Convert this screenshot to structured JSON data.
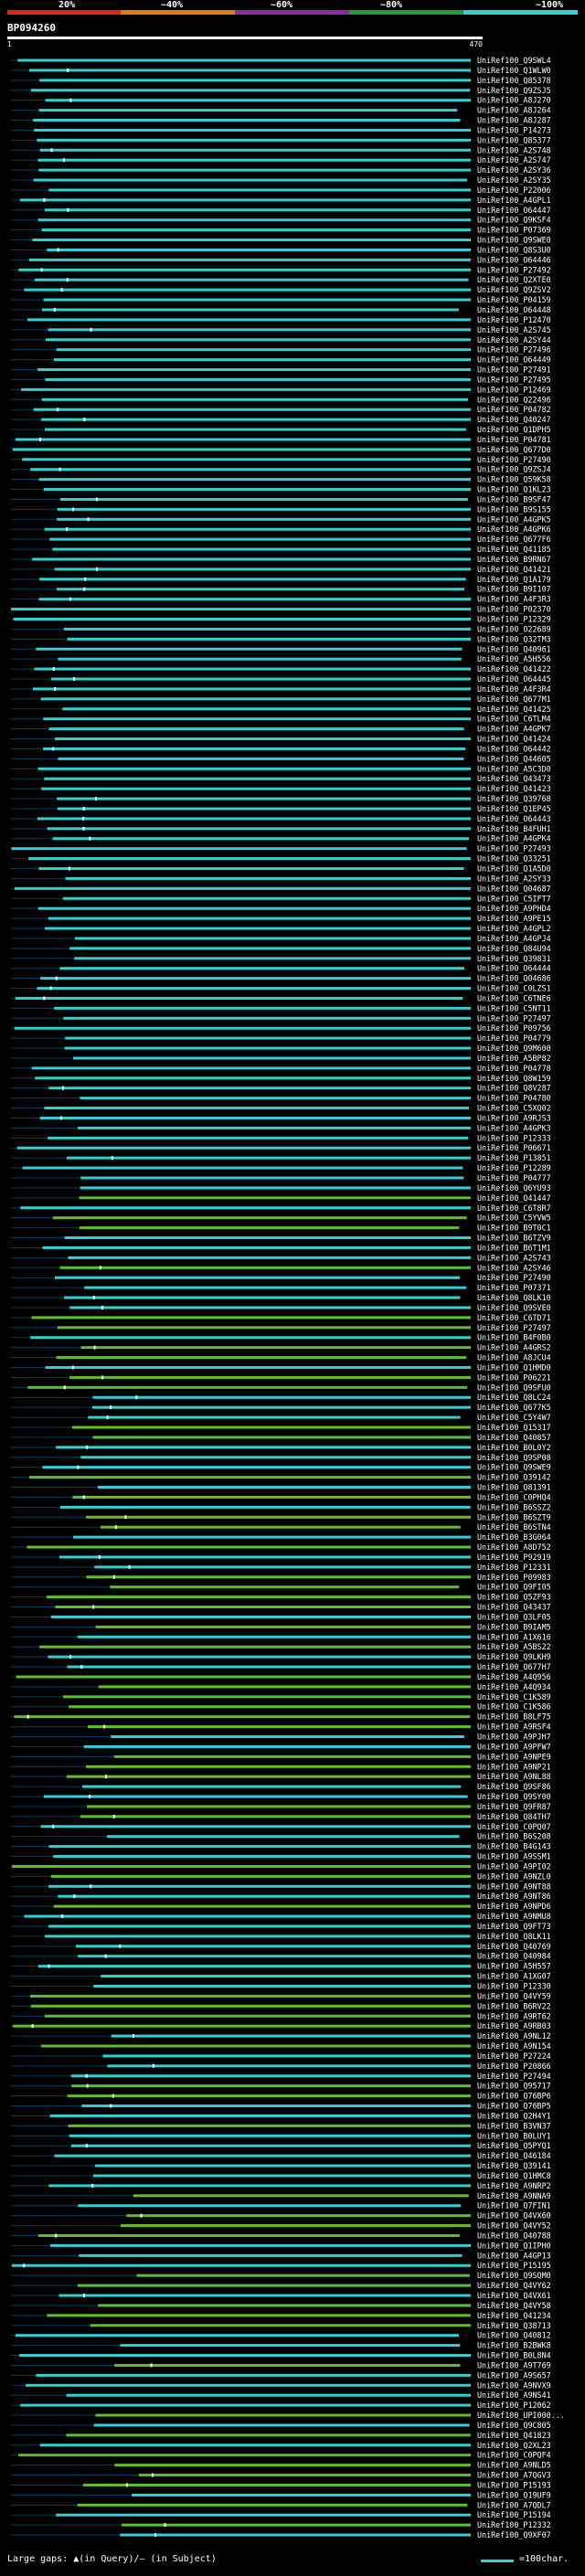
{
  "scale_bar": {
    "labels": [
      "20%",
      "~40%",
      "~60%",
      "~80%",
      "~100%"
    ],
    "colors": [
      "#e2231a",
      "#e07b17",
      "#8e2aa8",
      "#1f9a3a",
      "#2fd0d6"
    ]
  },
  "query_id": "BP094260",
  "ruler": {
    "start": "1",
    "end": "470"
  },
  "colors": {
    "strong": "#2fd0d6",
    "medium": "#5fbf2a",
    "gap": "#0a3a5a"
  },
  "hits": [
    "UniRef100_Q9SWL4",
    "UniRef100_Q1WLW0",
    "UniRef100_Q85378",
    "UniRef100_Q9ZSJ5",
    "UniRef100_A8J270",
    "UniRef100_A8J264",
    "UniRef100_A8J287",
    "UniRef100_P14273",
    "UniRef100_Q85377",
    "UniRef100_A2S748",
    "UniRef100_A2S747",
    "UniRef100_A2SY36",
    "UniRef100_A2SY35",
    "UniRef100_P22006",
    "UniRef100_A4GPL1",
    "UniRef100_O64447",
    "UniRef100_Q9KSF4",
    "UniRef100_P07369",
    "UniRef100_Q9SWE0",
    "UniRef100_Q8S3U0",
    "UniRef100_O64446",
    "UniRef100_P27492",
    "UniRef100_Q2XTE0",
    "UniRef100_Q9ZSV2",
    "UniRef100_P04159",
    "UniRef100_O64448",
    "UniRef100_P12470",
    "UniRef100_A2S745",
    "UniRef100_A2SY44",
    "UniRef100_P27496",
    "UniRef100_O64449",
    "UniRef100_P27491",
    "UniRef100_P27495",
    "UniRef100_P12469",
    "UniRef100_Q22496",
    "UniRef100_P04782",
    "UniRef100_Q40247",
    "UniRef100_Q1DPH5",
    "UniRef100_P04781",
    "UniRef100_Q677D0",
    "UniRef100_P27490",
    "UniRef100_Q9ZSJ4",
    "UniRef100_Q59K58",
    "UniRef100_Q1KL23",
    "UniRef100_B9SF47",
    "UniRef100_B9S155",
    "UniRef100_A4GPK5",
    "UniRef100_A4GPK6",
    "UniRef100_Q677F6",
    "UniRef100_Q41185",
    "UniRef100_B9RN67",
    "UniRef100_Q41421",
    "UniRef100_Q1A179",
    "UniRef100_B9I107",
    "UniRef100_A4F3R3",
    "UniRef100_P02370",
    "UniRef100_P12329",
    "UniRef100_O22689",
    "UniRef100_Q32TM3",
    "UniRef100_Q40961",
    "UniRef100_A5H556",
    "UniRef100_Q41422",
    "UniRef100_O64445",
    "UniRef100_A4F3R4",
    "UniRef100_Q677M1",
    "UniRef100_Q41425",
    "UniRef100_C6TLM4",
    "UniRef100_A4GPK7",
    "UniRef100_Q41424",
    "UniRef100_O64442",
    "UniRef100_Q44605",
    "UniRef100_A5C3D0",
    "UniRef100_Q43473",
    "UniRef100_Q41423",
    "UniRef100_Q39768",
    "UniRef100_Q1EP45",
    "UniRef100_O64443",
    "UniRef100_B4FUH1",
    "UniRef100_A4GPK4",
    "UniRef100_P27493",
    "UniRef100_Q33251",
    "UniRef100_Q1A5D0",
    "UniRef100_A2SY33",
    "UniRef100_Q04687",
    "UniRef100_C5IFT7",
    "UniRef100_A9PHD4",
    "UniRef100_A9PE15",
    "UniRef100_A4GPL2",
    "UniRef100_A4GPJ4",
    "UniRef100_Q84U94",
    "UniRef100_Q39831",
    "UniRef100_O64444",
    "UniRef100_Q04686",
    "UniRef100_C0LZS1",
    "UniRef100_C6TNE6",
    "UniRef100_C5NT11",
    "UniRef100_P27497",
    "UniRef100_P09756",
    "UniRef100_P04779",
    "UniRef100_Q9M600",
    "UniRef100_A5BP82",
    "UniRef100_P04778",
    "UniRef100_Q8W159",
    "UniRef100_Q8V287",
    "UniRef100_P04780",
    "UniRef100_C5XQ02",
    "UniRef100_A9RJS3",
    "UniRef100_A4GPK3",
    "UniRef100_P12333",
    "UniRef100_P06671",
    "UniRef100_P13851",
    "UniRef100_P12289",
    "UniRef100_P04777",
    "UniRef100_Q6YU93",
    "UniRef100_Q41447",
    "UniRef100_C6T8R7",
    "UniRef100_C5YVW5",
    "UniRef100_B9T0C1",
    "UniRef100_B6TZV9",
    "UniRef100_B6T1M1",
    "UniRef100_A2S743",
    "UniRef100_A2SY46",
    "UniRef100_P27490",
    "UniRef100_P07371",
    "UniRef100_Q8LK10",
    "UniRef100_Q9SVE0",
    "UniRef100_C6TD71",
    "UniRef100_P27497",
    "UniRef100_B4F0B0",
    "UniRef100_A4GRS2",
    "UniRef100_A8JCU4",
    "UniRef100_Q1HMD0",
    "UniRef100_P06221",
    "UniRef100_Q9SFU0",
    "UniRef100_Q8LC24",
    "UniRef100_Q677K5",
    "UniRef100_C5Y4W7",
    "UniRef100_Q15317",
    "UniRef100_Q40857",
    "UniRef100_B0L0Y2",
    "UniRef100_Q9SP08",
    "UniRef100_Q9SWE9",
    "UniRef100_Q39142",
    "UniRef100_Q81391",
    "UniRef100_C0PHQ4",
    "UniRef100_B6SSZ2",
    "UniRef100_B6SZT9",
    "UniRef100_B6STN4",
    "UniRef100_B3G064",
    "UniRef100_A8D752",
    "UniRef100_P92919",
    "UniRef100_P12331",
    "UniRef100_P09983",
    "UniRef100_Q9FI05",
    "UniRef100_Q5ZF93",
    "UniRef100_Q43437",
    "UniRef100_Q3LF05",
    "UniRef100_B9IAM5",
    "UniRef100_A1X616",
    "UniRef100_A5BS22",
    "UniRef100_Q9LKH9",
    "UniRef100_Q677H7",
    "UniRef100_A4Q956",
    "UniRef100_A4Q934",
    "UniRef100_C1K589",
    "UniRef100_C1K586",
    "UniRef100_B8LF75",
    "UniRef100_A9RSF4",
    "UniRef100_A9PJH7",
    "UniRef100_A9PFW7",
    "UniRef100_A9NPE9",
    "UniRef100_A9NP21",
    "UniRef100_A9NL88",
    "UniRef100_Q9SF86",
    "UniRef100_Q9SY00",
    "UniRef100_Q9FR87",
    "UniRef100_Q84TH7",
    "UniRef100_C0PQ07",
    "UniRef100_B6S208",
    "UniRef100_B4G143",
    "UniRef100_A9SSM1",
    "UniRef100_A9PI02",
    "UniRef100_A9NZL0",
    "UniRef100_A9NT88",
    "UniRef100_A9NT86",
    "UniRef100_A9NPD6",
    "UniRef100_A9NMU8",
    "UniRef100_Q9FT73",
    "UniRef100_Q8LK11",
    "UniRef100_Q40769",
    "UniRef100_Q40984",
    "UniRef100_A5H557",
    "UniRef100_A1XG07",
    "UniRef100_P12330",
    "UniRef100_Q4VY59",
    "UniRef100_B6RV22",
    "UniRef100_A9RT62",
    "UniRef100_A9RB03",
    "UniRef100_A9NL12",
    "UniRef100_A9N154",
    "UniRef100_P27224",
    "UniRef100_P20866",
    "UniRef100_P27494",
    "UniRef100_Q95717",
    "UniRef100_Q76BP6",
    "UniRef100_Q76BP5",
    "UniRef100_Q2H4Y1",
    "UniRef100_B3VN37",
    "UniRef100_B0LUY1",
    "UniRef100_Q5PYQ1",
    "UniRef100_Q46184",
    "UniRef100_Q39141",
    "UniRef100_Q1HMC8",
    "UniRef100_A9NRP2",
    "UniRef100_A9NNA9",
    "UniRef100_Q7FIN1",
    "UniRef100_Q4VX60",
    "UniRef100_Q4VY52",
    "UniRef100_Q40788",
    "UniRef100_Q1IPH0",
    "UniRef100_A4GP13",
    "UniRef100_P15195",
    "UniRef100_Q9SQM0",
    "UniRef100_Q4VY62",
    "UniRef100_Q4VX61",
    "UniRef100_Q4VY58",
    "UniRef100_Q41234",
    "UniRef100_Q38713",
    "UniRef100_Q40812",
    "UniRef100_B2BWK8",
    "UniRef100_B0L8N4",
    "UniRef100_A9T769",
    "UniRef100_A9S657",
    "UniRef100_A9NVX9",
    "UniRef100_A9NS41",
    "UniRef100_P12062",
    "UniRef100_UPI000...",
    "UniRef100_Q9C805",
    "UniRef100_Q41823",
    "UniRef100_Q2XL23",
    "UniRef100_C0PQF4",
    "UniRef100_A9NLD5",
    "UniRef100_A7QGV3",
    "UniRef100_P15193",
    "UniRef100_Q19UF9",
    "UniRef100_A7QDL7",
    "UniRef100_P15194",
    "UniRef100_P12332",
    "UniRef100_Q9XF07"
  ],
  "legend": {
    "gap_text": "Large gaps: ▲(in Query)/– (in Subject)",
    "scale_text": "=100char."
  }
}
